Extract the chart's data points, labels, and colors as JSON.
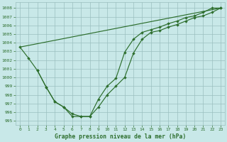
{
  "bg_color": "#c8e8e8",
  "grid_color": "#9bbfbf",
  "line_color": "#2d6e2d",
  "xlabel": "Graphe pression niveau de la mer (hPa)",
  "ylim": [
    994.5,
    1008.7
  ],
  "xlim": [
    -0.5,
    23.5
  ],
  "yticks": [
    995,
    996,
    997,
    998,
    999,
    1000,
    1001,
    1002,
    1003,
    1004,
    1005,
    1006,
    1007,
    1008
  ],
  "xticks": [
    0,
    1,
    2,
    3,
    4,
    5,
    6,
    7,
    8,
    9,
    10,
    11,
    12,
    13,
    14,
    15,
    16,
    17,
    18,
    19,
    20,
    21,
    22,
    23
  ],
  "curve1_x": [
    0,
    1,
    2,
    3,
    4,
    5,
    6,
    7,
    8,
    9,
    10,
    11,
    12,
    13,
    14,
    15,
    16,
    17,
    18,
    19,
    20,
    21,
    22,
    23
  ],
  "curve1_y": [
    1003.5,
    1002.2,
    1000.8,
    998.9,
    997.2,
    996.6,
    995.5,
    995.5,
    995.5,
    996.6,
    998.0,
    999.0,
    1000.0,
    1002.8,
    1004.4,
    1005.2,
    1005.4,
    1005.8,
    1006.1,
    1006.5,
    1006.9,
    1007.1,
    1007.5,
    1008.0
  ],
  "curve2_x": [
    0,
    23
  ],
  "curve2_y": [
    1003.5,
    1008.0
  ],
  "curve3_x": [
    2,
    3,
    4,
    5,
    6,
    7,
    8,
    9,
    10,
    11,
    12,
    13,
    14,
    15,
    16,
    17,
    18,
    19,
    20,
    21,
    22,
    23
  ],
  "curve3_y": [
    1000.8,
    998.9,
    997.2,
    996.6,
    995.8,
    995.5,
    995.5,
    997.5,
    999.0,
    999.9,
    1002.9,
    1004.4,
    1005.2,
    1005.5,
    1005.8,
    1006.2,
    1006.5,
    1006.9,
    1007.1,
    1007.5,
    1008.0,
    1008.0
  ]
}
